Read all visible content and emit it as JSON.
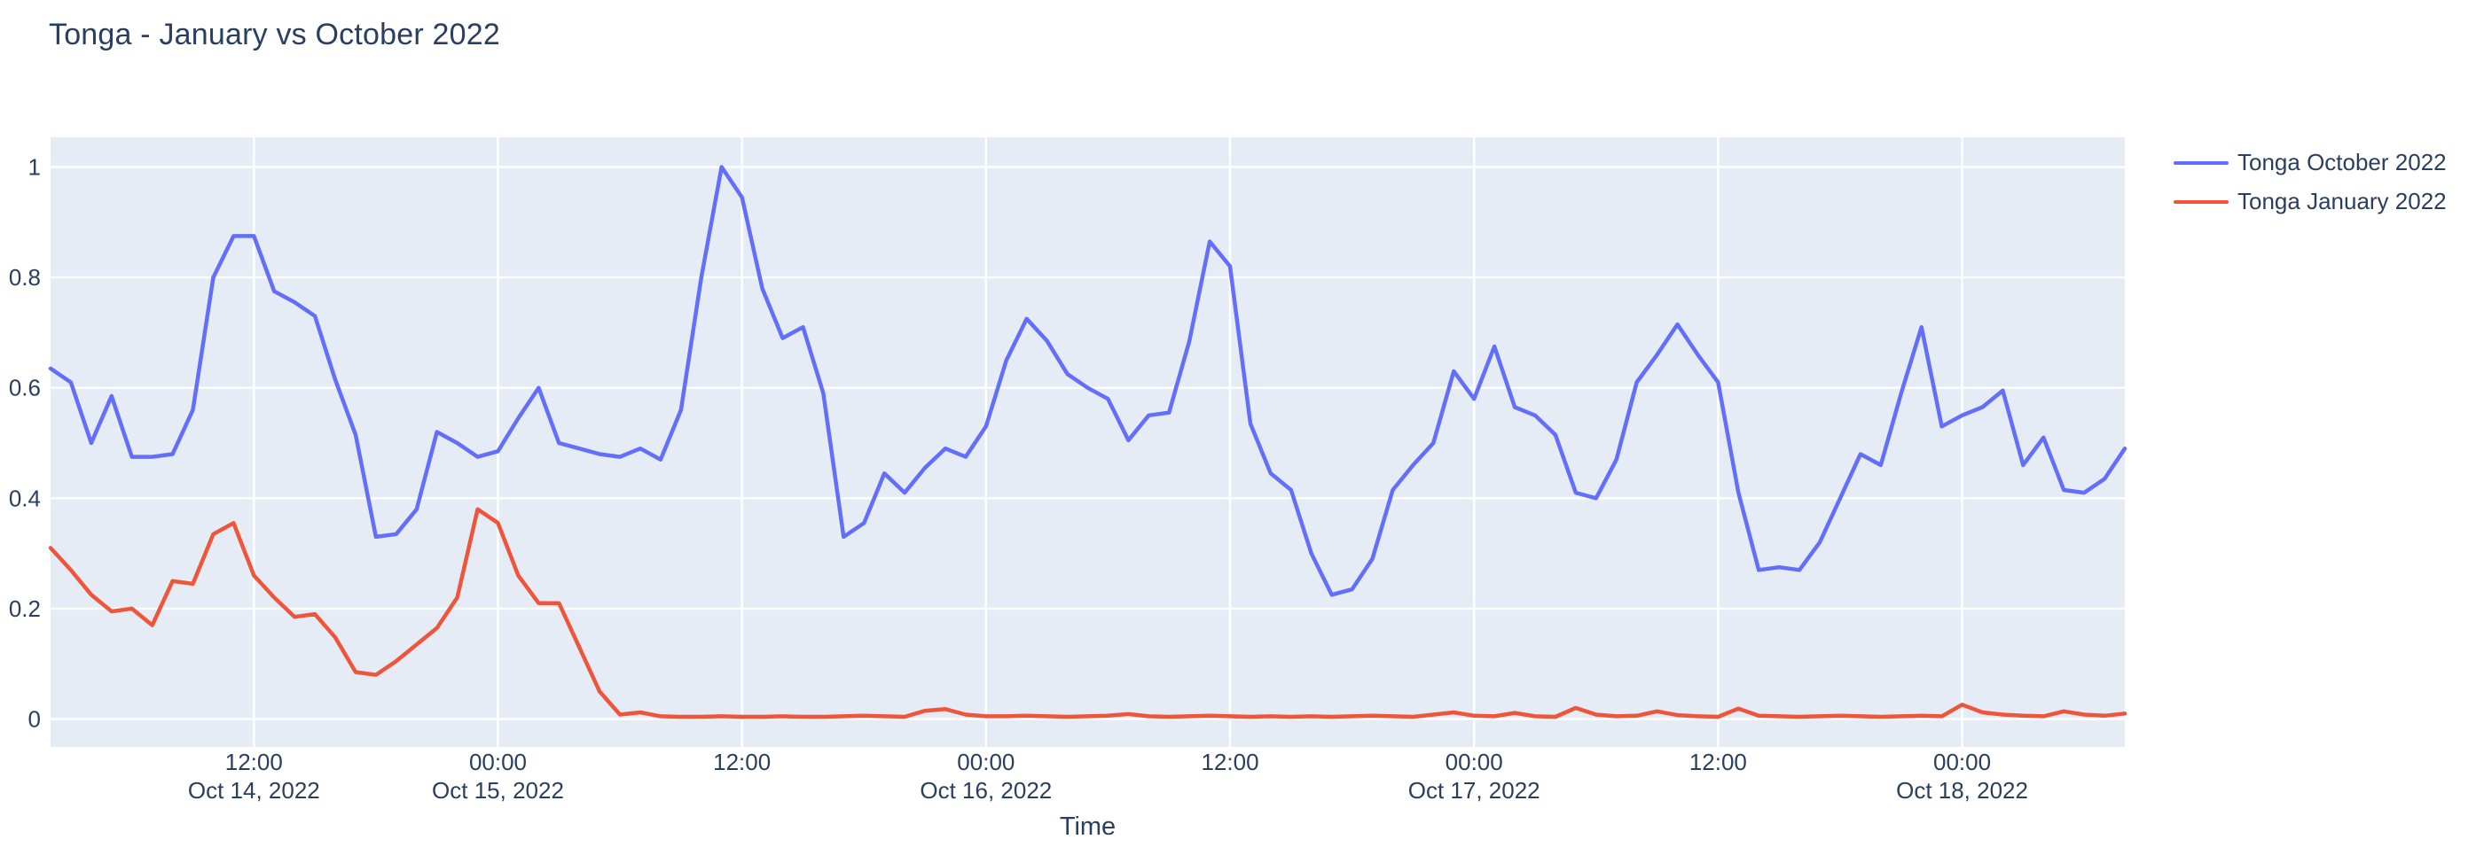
{
  "title": "Tonga - January vs October 2022",
  "colors": {
    "title_text": "#2a3f5f",
    "axis_text": "#2a3f5f",
    "plot_background": "#E5ECF6",
    "gridline": "#ffffff",
    "paper_background": "#ffffff",
    "series_october": "#636EFA",
    "series_january": "#EF553B"
  },
  "legend": {
    "items": [
      {
        "label": "Tonga October 2022",
        "color": "#636EFA"
      },
      {
        "label": "Tonga January 2022",
        "color": "#EF553B"
      }
    ]
  },
  "chart_data": {
    "type": "line",
    "title": "Tonga - January vs October 2022",
    "xlabel": "Time",
    "ylabel": "",
    "grid": true,
    "legend_position": "top-right",
    "x_unit": "hourly samples, Oct 14 2022 ~02:00 through Oct 18 2022 ~08:00",
    "ylim": [
      -0.05,
      1.05
    ],
    "y_ticks": [
      {
        "value": 0,
        "label": "0"
      },
      {
        "value": 0.2,
        "label": "0.2"
      },
      {
        "value": 0.4,
        "label": "0.4"
      },
      {
        "value": 0.6,
        "label": "0.6"
      },
      {
        "value": 0.8,
        "label": "0.8"
      },
      {
        "value": 1,
        "label": "1"
      }
    ],
    "x_ticks": [
      {
        "index": 10,
        "lines": [
          "12:00",
          "Oct 14, 2022"
        ]
      },
      {
        "index": 22,
        "lines": [
          "00:00",
          "Oct 15, 2022"
        ]
      },
      {
        "index": 34,
        "lines": [
          "12:00",
          ""
        ]
      },
      {
        "index": 46,
        "lines": [
          "00:00",
          "Oct 16, 2022"
        ]
      },
      {
        "index": 58,
        "lines": [
          "12:00",
          ""
        ]
      },
      {
        "index": 70,
        "lines": [
          "00:00",
          "Oct 17, 2022"
        ]
      },
      {
        "index": 82,
        "lines": [
          "12:00",
          ""
        ]
      },
      {
        "index": 94,
        "lines": [
          "00:00",
          "Oct 18, 2022"
        ]
      }
    ],
    "series": [
      {
        "name": "Tonga October 2022",
        "color": "#636EFA",
        "values": [
          0.635,
          0.61,
          0.5,
          0.585,
          0.475,
          0.475,
          0.48,
          0.56,
          0.8,
          0.875,
          0.875,
          0.775,
          0.755,
          0.73,
          0.615,
          0.515,
          0.33,
          0.335,
          0.38,
          0.52,
          0.5,
          0.475,
          0.485,
          0.545,
          0.6,
          0.5,
          0.49,
          0.48,
          0.475,
          0.49,
          0.47,
          0.56,
          0.8,
          1.0,
          0.945,
          0.78,
          0.69,
          0.71,
          0.59,
          0.33,
          0.355,
          0.445,
          0.41,
          0.455,
          0.49,
          0.475,
          0.53,
          0.65,
          0.725,
          0.685,
          0.625,
          0.6,
          0.58,
          0.505,
          0.55,
          0.555,
          0.685,
          0.865,
          0.82,
          0.535,
          0.445,
          0.415,
          0.3,
          0.225,
          0.235,
          0.29,
          0.415,
          0.46,
          0.5,
          0.63,
          0.58,
          0.675,
          0.565,
          0.55,
          0.515,
          0.41,
          0.4,
          0.47,
          0.61,
          0.66,
          0.715,
          0.66,
          0.61,
          0.41,
          0.27,
          0.275,
          0.27,
          0.32,
          0.4,
          0.48,
          0.46,
          0.59,
          0.71,
          0.53,
          0.55,
          0.565,
          0.595,
          0.46,
          0.51,
          0.415,
          0.41,
          0.435,
          0.49
        ]
      },
      {
        "name": "Tonga January 2022",
        "color": "#EF553B",
        "values": [
          0.31,
          0.27,
          0.225,
          0.195,
          0.2,
          0.17,
          0.25,
          0.245,
          0.335,
          0.355,
          0.26,
          0.22,
          0.185,
          0.19,
          0.148,
          0.085,
          0.08,
          0.105,
          0.135,
          0.165,
          0.22,
          0.38,
          0.355,
          0.26,
          0.21,
          0.21,
          0.13,
          0.05,
          0.008,
          0.012,
          0.005,
          0.004,
          0.004,
          0.005,
          0.004,
          0.004,
          0.005,
          0.004,
          0.004,
          0.005,
          0.006,
          0.005,
          0.004,
          0.015,
          0.018,
          0.008,
          0.005,
          0.005,
          0.006,
          0.005,
          0.004,
          0.005,
          0.006,
          0.009,
          0.005,
          0.004,
          0.005,
          0.006,
          0.005,
          0.004,
          0.005,
          0.004,
          0.005,
          0.004,
          0.005,
          0.006,
          0.005,
          0.004,
          0.008,
          0.012,
          0.006,
          0.005,
          0.011,
          0.005,
          0.004,
          0.02,
          0.008,
          0.005,
          0.006,
          0.014,
          0.007,
          0.005,
          0.004,
          0.019,
          0.006,
          0.005,
          0.004,
          0.005,
          0.006,
          0.005,
          0.004,
          0.005,
          0.006,
          0.005,
          0.026,
          0.012,
          0.008,
          0.006,
          0.005,
          0.014,
          0.008,
          0.006,
          0.01
        ]
      }
    ]
  }
}
